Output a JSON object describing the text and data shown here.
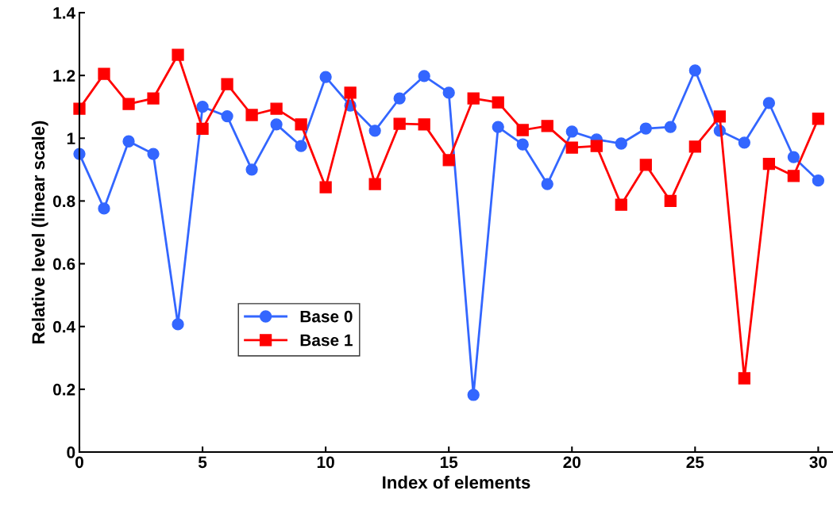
{
  "chart_data": {
    "type": "line",
    "xlabel": "Index of elements",
    "ylabel": "Relative level (linear scale)",
    "x": [
      0,
      1,
      2,
      3,
      4,
      5,
      6,
      7,
      8,
      9,
      10,
      11,
      12,
      13,
      14,
      15,
      16,
      17,
      18,
      19,
      20,
      21,
      22,
      23,
      24,
      25,
      26,
      27,
      28,
      29,
      30
    ],
    "series": [
      {
        "name": "Base 0",
        "color": "#3366ff",
        "marker": "circle",
        "values": [
          0.95,
          0.776,
          0.99,
          0.95,
          0.407,
          1.1,
          1.07,
          0.9,
          1.044,
          0.975,
          1.195,
          1.104,
          1.024,
          1.127,
          1.198,
          1.145,
          0.182,
          1.036,
          0.98,
          0.854,
          1.021,
          0.996,
          0.983,
          1.031,
          1.036,
          1.216,
          1.024,
          0.986,
          1.112,
          0.94,
          0.865
        ]
      },
      {
        "name": "Base 1",
        "color": "#ff0000",
        "marker": "square",
        "values": [
          1.094,
          1.205,
          1.109,
          1.127,
          1.266,
          1.03,
          1.172,
          1.074,
          1.094,
          1.044,
          0.844,
          1.145,
          0.854,
          1.046,
          1.044,
          0.93,
          1.127,
          1.114,
          1.026,
          1.039,
          0.97,
          0.975,
          0.788,
          0.915,
          0.8,
          0.973,
          1.069,
          0.235,
          0.918,
          0.88,
          1.062
        ]
      }
    ],
    "xlim": [
      0,
      30.6
    ],
    "xticks": [
      0,
      5,
      10,
      15,
      20,
      25,
      30
    ],
    "ylim": [
      0,
      1.4
    ],
    "yticks": [
      0,
      0.2,
      0.4,
      0.6,
      0.8,
      1,
      1.2,
      1.4
    ],
    "grid": false,
    "legend": "bottom left",
    "line_style": "solid"
  }
}
